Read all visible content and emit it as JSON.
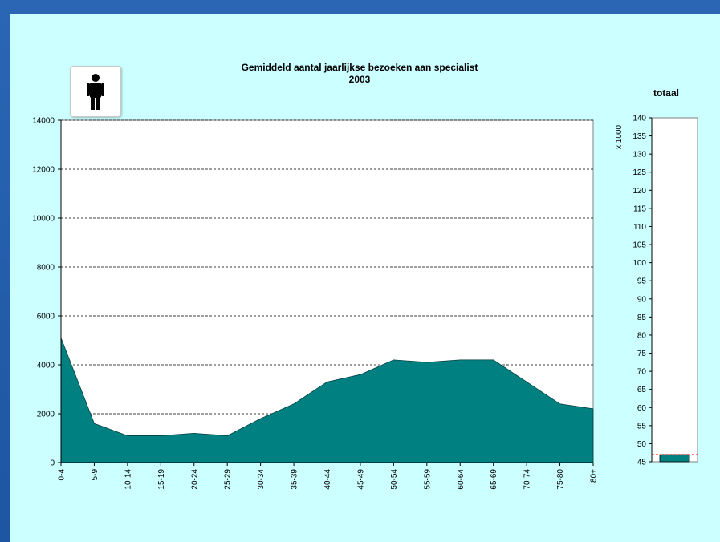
{
  "chart_data": [
    {
      "type": "area",
      "title": "Gemiddeld aantal jaarlijkse bezoeken aan specialist",
      "subtitle": "2003",
      "categories": [
        "0-4",
        "5-9",
        "10-14",
        "15-19",
        "20-24",
        "25-29",
        "30-34",
        "35-39",
        "40-44",
        "45-49",
        "50-54",
        "55-59",
        "60-64",
        "65-69",
        "70-74",
        "75-80",
        "80+"
      ],
      "series": [
        {
          "values": [
            5100,
            1600,
            1100,
            1100,
            1200,
            1100,
            1800,
            2400,
            3300,
            3600,
            4200,
            4100,
            4200,
            4200,
            3300,
            2400,
            2200
          ]
        }
      ],
      "ylim": [
        0,
        14000
      ],
      "yticks": [
        "0",
        "2000",
        "4000",
        "6000",
        "8000",
        "10000",
        "12000",
        "14000"
      ],
      "grid": "horizontal dashed",
      "fill_color": "#008080"
    },
    {
      "type": "bar",
      "title": "totaal",
      "ylabel": "x 1000",
      "categories": [
        ""
      ],
      "values": [
        47
      ],
      "reference_line": 47,
      "ylim": [
        45,
        140
      ],
      "yticks": [
        "45",
        "50",
        "55",
        "60",
        "65",
        "70",
        "75",
        "80",
        "85",
        "90",
        "95",
        "100",
        "105",
        "110",
        "115",
        "120",
        "125",
        "130",
        "135",
        "140"
      ],
      "bar_color": "#008080",
      "reference_color": "#ff0000"
    }
  ],
  "icons": {
    "person": "person-icon"
  }
}
